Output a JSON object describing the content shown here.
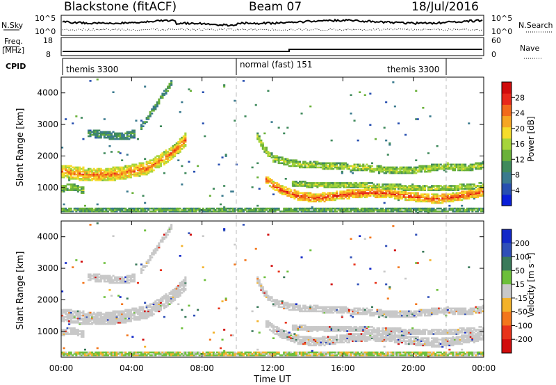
{
  "header": {
    "station": "Blackstone (fitACF)",
    "beam": "Beam 07",
    "date": "18/Jul/2016"
  },
  "top_panels": {
    "nsky_label": "N.Sky",
    "nsky_ticks": [
      "10^5",
      "10^0"
    ],
    "nsearch_label": "N.Search",
    "nsearch_ticks": [
      "10^5",
      "10^0"
    ],
    "freq_label": "Freq.",
    "freq_unit": "[MHz]",
    "freq_ticks": [
      "18",
      "8"
    ],
    "nave_label": "Nave",
    "nave_ticks": [
      "60",
      "0"
    ],
    "cpid_label": "CPID",
    "cpid_segments": [
      {
        "label": "themis 3300",
        "start_hour": 0,
        "end_hour": 10
      },
      {
        "label": "normal (fast) 151",
        "start_hour": 10,
        "end_hour": 22
      },
      {
        "label": "themis 3300",
        "start_hour": 22,
        "end_hour": 24
      }
    ]
  },
  "chart_data": [
    {
      "type": "heatmap",
      "name": "power",
      "ylabel": "Slant Range [km]",
      "yticks": [
        "1000",
        "2000",
        "3000",
        "4000"
      ],
      "ylim": [
        180,
        4500
      ],
      "xlim": [
        0,
        24
      ],
      "colorbar": {
        "label": "Power [dB]",
        "ticks": [
          "4",
          "8",
          "12",
          "16",
          "20",
          "24",
          "28"
        ],
        "range": [
          0,
          30
        ],
        "colors": [
          "#0a1fd8",
          "#274fb0",
          "#3a7a8e",
          "#3f8a5c",
          "#6ab13a",
          "#a6d43b",
          "#f5dc2b",
          "#f6a623",
          "#f26a1b",
          "#e8281a",
          "#d10c0c"
        ]
      },
      "bands": [
        {
          "name": "main",
          "points": [
            [
              0.0,
              1500
            ],
            [
              1.0,
              1420
            ],
            [
              2.0,
              1380
            ],
            [
              3.0,
              1420
            ],
            [
              4.0,
              1500
            ],
            [
              4.8,
              1600
            ],
            [
              5.5,
              1800
            ],
            [
              6.0,
              2000
            ],
            [
              6.5,
              2200
            ],
            [
              7.0,
              2500
            ]
          ],
          "width": 420,
          "power_mid": 16,
          "power_core": 24
        },
        {
          "name": "upper",
          "points": [
            [
              1.5,
              2700
            ],
            [
              2.5,
              2650
            ],
            [
              3.5,
              2600
            ],
            [
              4.2,
              2700
            ]
          ],
          "width": 250,
          "power_mid": 8,
          "power_core": 10
        },
        {
          "name": "upper-right",
          "points": [
            [
              4.5,
              2900
            ],
            [
              5.0,
              3300
            ],
            [
              5.6,
              3800
            ],
            [
              6.2,
              4300
            ]
          ],
          "width": 180,
          "power_mid": 9,
          "power_core": 10
        },
        {
          "name": "early-low",
          "points": [
            [
              0.0,
              950
            ],
            [
              0.6,
              1000
            ],
            [
              1.2,
              900
            ]
          ],
          "width": 220,
          "power_mid": 12,
          "power_core": 14
        },
        {
          "name": "recovery",
          "points": [
            [
              11.0,
              2700
            ],
            [
              11.5,
              2200
            ],
            [
              12.0,
              1900
            ],
            [
              13.0,
              1750
            ],
            [
              14.0,
              1700
            ],
            [
              15.0,
              1680
            ],
            [
              16.0,
              1650
            ],
            [
              17.0,
              1620
            ],
            [
              18.0,
              1560
            ],
            [
              19.0,
              1520
            ],
            [
              20.0,
              1540
            ],
            [
              21.0,
              1600
            ],
            [
              22.0,
              1650
            ],
            [
              23.0,
              1600
            ],
            [
              24.0,
              1700
            ]
          ],
          "width": 220,
          "power_mid": 12,
          "power_core": 16
        },
        {
          "name": "low",
          "points": [
            [
              11.5,
              1300
            ],
            [
              12.0,
              1050
            ],
            [
              12.5,
              900
            ],
            [
              13.0,
              800
            ],
            [
              13.5,
              700
            ],
            [
              14.5,
              650
            ],
            [
              15.5,
              720
            ],
            [
              16.5,
              780
            ],
            [
              17.5,
              820
            ],
            [
              18.5,
              800
            ],
            [
              19.5,
              720
            ],
            [
              20.5,
              650
            ],
            [
              21.5,
              620
            ],
            [
              22.5,
              700
            ],
            [
              23.5,
              800
            ],
            [
              24.0,
              850
            ]
          ],
          "width": 280,
          "power_mid": 18,
          "power_core": 26
        },
        {
          "name": "low2",
          "points": [
            [
              13.0,
              1100
            ],
            [
              15.0,
              1050
            ],
            [
              17.0,
              1050
            ],
            [
              19.0,
              1000
            ],
            [
              21.0,
              950
            ],
            [
              23.0,
              1000
            ],
            [
              24.0,
              1050
            ]
          ],
          "width": 180,
          "power_mid": 12,
          "power_core": 16
        },
        {
          "name": "ground",
          "points": [
            [
              0.0,
              260
            ],
            [
              24.0,
              260
            ]
          ],
          "width": 140,
          "power_mid": 10,
          "power_core": 12
        }
      ]
    },
    {
      "type": "heatmap",
      "name": "velocity",
      "ylabel": "Slant Range [km]",
      "yticks": [
        "1000",
        "2000",
        "3000",
        "4000"
      ],
      "ylim": [
        180,
        4500
      ],
      "xlim": [
        0,
        24
      ],
      "xticks": [
        "00:00",
        "04:00",
        "08:00",
        "12:00",
        "16:00",
        "20:00",
        "00:00"
      ],
      "xlabel": "Time UT",
      "colorbar": {
        "label": "Velocity [m s⁻¹]",
        "ticks": [
          "200",
          "100",
          "50",
          "15",
          "-15",
          "-50",
          "-100",
          "-200"
        ],
        "colors": [
          "#1228c8",
          "#2f4fb8",
          "#3a7a5a",
          "#6cbf3a",
          "#c8c8c8",
          "#f3b22a",
          "#f3761b",
          "#e8331a",
          "#d10c0c"
        ]
      }
    }
  ]
}
